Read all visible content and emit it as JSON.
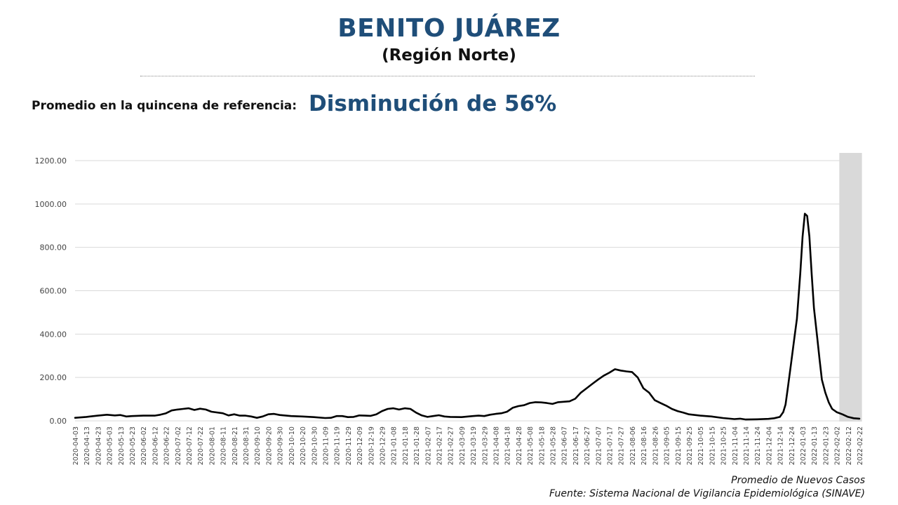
{
  "header": {
    "title": "BENITO JUÁREZ",
    "subtitle": "(Región Norte)"
  },
  "reference": {
    "label": "Promedio en la quincena de referencia:",
    "value": "Disminución de 56%"
  },
  "footer": {
    "series_caption": "Promedio de Nuevos Casos",
    "source": "Fuente: Sistema Nacional de Vigilancia Epidemiológica (SINAVE)"
  },
  "colors": {
    "title": "#1f4e79",
    "line": "#000000",
    "grid": "#d9d9d9",
    "highlight": "#d9d9d9"
  },
  "chart_data": {
    "type": "line",
    "ylim": [
      0,
      1200
    ],
    "yticks": [
      "0.00",
      "200.00",
      "400.00",
      "600.00",
      "800.00",
      "1000.00",
      "1200.00"
    ],
    "grid": true,
    "xticks": [
      "2020-04-03",
      "2020-04-13",
      "2020-04-23",
      "2020-05-03",
      "2020-05-13",
      "2020-05-23",
      "2020-06-02",
      "2020-06-12",
      "2020-06-22",
      "2020-07-02",
      "2020-07-12",
      "2020-07-22",
      "2020-08-01",
      "2020-08-11",
      "2020-08-21",
      "2020-08-31",
      "2020-09-10",
      "2020-09-20",
      "2020-09-30",
      "2020-10-10",
      "2020-10-20",
      "2020-10-30",
      "2020-11-09",
      "2020-11-19",
      "2020-11-29",
      "2020-12-09",
      "2020-12-19",
      "2020-12-29",
      "2021-01-08",
      "2021-01-18",
      "2021-01-28",
      "2021-02-07",
      "2021-02-17",
      "2021-02-27",
      "2021-03-09",
      "2021-03-19",
      "2021-03-29",
      "2021-04-08",
      "2021-04-18",
      "2021-04-28",
      "2021-05-08",
      "2021-05-18",
      "2021-05-28",
      "2021-06-07",
      "2021-06-17",
      "2021-06-27",
      "2021-07-07",
      "2021-07-17",
      "2021-07-27",
      "2021-08-06",
      "2021-08-16",
      "2021-08-26",
      "2021-09-05",
      "2021-09-15",
      "2021-09-25",
      "2021-10-05",
      "2021-10-15",
      "2021-10-25",
      "2021-11-04",
      "2021-11-14",
      "2021-11-24",
      "2021-12-04",
      "2021-12-14",
      "2021-12-24",
      "2022-01-03",
      "2022-01-13",
      "2022-01-23",
      "2022-02-02",
      "2022-02-12",
      "2022-02-22"
    ],
    "highlight_range": [
      "2022-02-08",
      "2022-02-23"
    ],
    "series": [
      {
        "points": [
          [
            "2020-04-03",
            14
          ],
          [
            "2020-04-13",
            18
          ],
          [
            "2020-04-23",
            24
          ],
          [
            "2020-05-01",
            28
          ],
          [
            "2020-05-08",
            25
          ],
          [
            "2020-05-13",
            27
          ],
          [
            "2020-05-18",
            20
          ],
          [
            "2020-05-23",
            22
          ],
          [
            "2020-06-02",
            24
          ],
          [
            "2020-06-12",
            24
          ],
          [
            "2020-06-17",
            28
          ],
          [
            "2020-06-22",
            35
          ],
          [
            "2020-06-27",
            48
          ],
          [
            "2020-07-02",
            52
          ],
          [
            "2020-07-07",
            55
          ],
          [
            "2020-07-12",
            58
          ],
          [
            "2020-07-17",
            50
          ],
          [
            "2020-07-22",
            56
          ],
          [
            "2020-07-27",
            52
          ],
          [
            "2020-08-01",
            42
          ],
          [
            "2020-08-11",
            35
          ],
          [
            "2020-08-16",
            25
          ],
          [
            "2020-08-21",
            30
          ],
          [
            "2020-08-26",
            24
          ],
          [
            "2020-08-31",
            24
          ],
          [
            "2020-09-05",
            20
          ],
          [
            "2020-09-10",
            14
          ],
          [
            "2020-09-15",
            20
          ],
          [
            "2020-09-20",
            30
          ],
          [
            "2020-09-25",
            32
          ],
          [
            "2020-09-30",
            27
          ],
          [
            "2020-10-10",
            22
          ],
          [
            "2020-10-20",
            20
          ],
          [
            "2020-10-30",
            17
          ],
          [
            "2020-11-09",
            13
          ],
          [
            "2020-11-14",
            14
          ],
          [
            "2020-11-19",
            22
          ],
          [
            "2020-11-24",
            22
          ],
          [
            "2020-11-29",
            17
          ],
          [
            "2020-12-04",
            18
          ],
          [
            "2020-12-09",
            25
          ],
          [
            "2020-12-14",
            24
          ],
          [
            "2020-12-19",
            23
          ],
          [
            "2020-12-24",
            30
          ],
          [
            "2020-12-29",
            45
          ],
          [
            "2021-01-03",
            55
          ],
          [
            "2021-01-08",
            58
          ],
          [
            "2021-01-13",
            52
          ],
          [
            "2021-01-18",
            58
          ],
          [
            "2021-01-23",
            55
          ],
          [
            "2021-01-28",
            38
          ],
          [
            "2021-02-02",
            25
          ],
          [
            "2021-02-07",
            18
          ],
          [
            "2021-02-12",
            22
          ],
          [
            "2021-02-17",
            26
          ],
          [
            "2021-02-22",
            20
          ],
          [
            "2021-02-27",
            18
          ],
          [
            "2021-03-09",
            17
          ],
          [
            "2021-03-19",
            22
          ],
          [
            "2021-03-24",
            24
          ],
          [
            "2021-03-29",
            22
          ],
          [
            "2021-04-03",
            28
          ],
          [
            "2021-04-08",
            32
          ],
          [
            "2021-04-13",
            35
          ],
          [
            "2021-04-18",
            42
          ],
          [
            "2021-04-23",
            60
          ],
          [
            "2021-04-28",
            68
          ],
          [
            "2021-05-03",
            72
          ],
          [
            "2021-05-08",
            82
          ],
          [
            "2021-05-13",
            86
          ],
          [
            "2021-05-18",
            85
          ],
          [
            "2021-05-23",
            82
          ],
          [
            "2021-05-28",
            78
          ],
          [
            "2021-06-02",
            86
          ],
          [
            "2021-06-07",
            88
          ],
          [
            "2021-06-12",
            90
          ],
          [
            "2021-06-17",
            102
          ],
          [
            "2021-06-22",
            130
          ],
          [
            "2021-06-27",
            150
          ],
          [
            "2021-07-02",
            170
          ],
          [
            "2021-07-07",
            190
          ],
          [
            "2021-07-12",
            208
          ],
          [
            "2021-07-17",
            222
          ],
          [
            "2021-07-22",
            238
          ],
          [
            "2021-07-27",
            232
          ],
          [
            "2021-08-01",
            228
          ],
          [
            "2021-08-06",
            225
          ],
          [
            "2021-08-11",
            200
          ],
          [
            "2021-08-16",
            150
          ],
          [
            "2021-08-21",
            130
          ],
          [
            "2021-08-26",
            95
          ],
          [
            "2021-08-31",
            82
          ],
          [
            "2021-09-05",
            70
          ],
          [
            "2021-09-10",
            55
          ],
          [
            "2021-09-15",
            45
          ],
          [
            "2021-09-20",
            38
          ],
          [
            "2021-09-25",
            30
          ],
          [
            "2021-10-05",
            24
          ],
          [
            "2021-10-15",
            20
          ],
          [
            "2021-10-25",
            13
          ],
          [
            "2021-11-04",
            8
          ],
          [
            "2021-11-09",
            10
          ],
          [
            "2021-11-14",
            6
          ],
          [
            "2021-11-24",
            7
          ],
          [
            "2021-12-04",
            9
          ],
          [
            "2021-12-09",
            12
          ],
          [
            "2021-12-14",
            18
          ],
          [
            "2021-12-17",
            40
          ],
          [
            "2021-12-19",
            75
          ],
          [
            "2021-12-21",
            150
          ],
          [
            "2021-12-24",
            270
          ],
          [
            "2021-12-27",
            390
          ],
          [
            "2021-12-29",
            470
          ],
          [
            "2022-01-01",
            680
          ],
          [
            "2022-01-03",
            850
          ],
          [
            "2022-01-05",
            955
          ],
          [
            "2022-01-07",
            945
          ],
          [
            "2022-01-09",
            850
          ],
          [
            "2022-01-11",
            680
          ],
          [
            "2022-01-13",
            520
          ],
          [
            "2022-01-16",
            380
          ],
          [
            "2022-01-18",
            280
          ],
          [
            "2022-01-20",
            190
          ],
          [
            "2022-01-23",
            130
          ],
          [
            "2022-01-26",
            85
          ],
          [
            "2022-01-29",
            55
          ],
          [
            "2022-02-02",
            40
          ],
          [
            "2022-02-07",
            30
          ],
          [
            "2022-02-12",
            18
          ],
          [
            "2022-02-17",
            12
          ],
          [
            "2022-02-22",
            10
          ]
        ]
      }
    ]
  }
}
